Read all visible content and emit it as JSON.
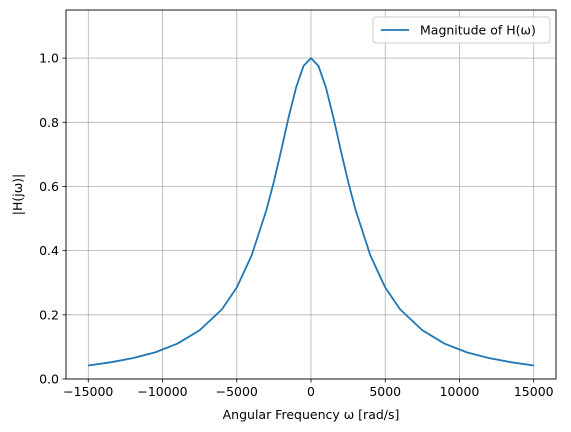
{
  "chart_data": {
    "type": "line",
    "xlabel": "Angular Frequency ω [rad/s]",
    "ylabel": "|H(jω)|",
    "xlim": [
      -16500,
      16500
    ],
    "ylim": [
      0,
      1.15
    ],
    "xticks": [
      -15000,
      -10000,
      -5000,
      0,
      5000,
      10000,
      15000
    ],
    "yticks": [
      0.0,
      0.2,
      0.4,
      0.6,
      0.8,
      1.0
    ],
    "xtick_labels": [
      "−15000",
      "−10000",
      "−5000",
      "0",
      "5000",
      "10000",
      "15000"
    ],
    "ytick_labels": [
      "0.0",
      "0.2",
      "0.4",
      "0.6",
      "0.8",
      "1.0"
    ],
    "grid": true,
    "legend_position": "top-right",
    "series": [
      {
        "name": "Magnitude of H(ω)",
        "color": "#1f77b4",
        "x": [
          -15000,
          -13500,
          -12000,
          -10500,
          -9000,
          -7500,
          -6000,
          -5000,
          -4000,
          -3000,
          -2500,
          -2000,
          -1500,
          -1000,
          -500,
          0,
          500,
          1000,
          1500,
          2000,
          2500,
          3000,
          4000,
          5000,
          6000,
          7500,
          9000,
          10500,
          12000,
          13500,
          15000
        ],
        "y": [
          0.042,
          0.052,
          0.065,
          0.083,
          0.11,
          0.152,
          0.217,
          0.285,
          0.385,
          0.527,
          0.615,
          0.714,
          0.817,
          0.909,
          0.976,
          1.0,
          0.976,
          0.909,
          0.817,
          0.714,
          0.615,
          0.527,
          0.385,
          0.285,
          0.217,
          0.152,
          0.11,
          0.083,
          0.065,
          0.052,
          0.042
        ]
      }
    ]
  }
}
